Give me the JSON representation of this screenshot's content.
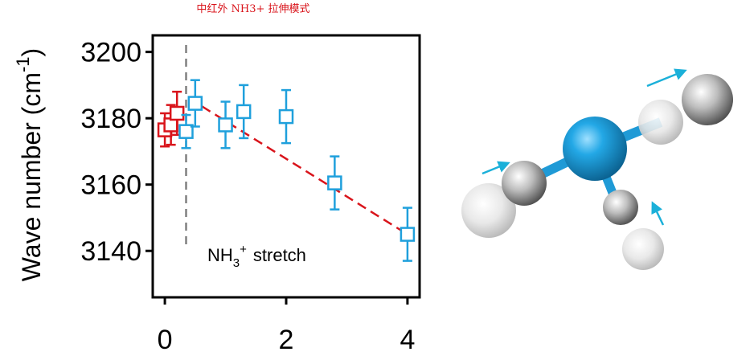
{
  "chart_data": {
    "type": "scatter",
    "title": "中红外 NH3+ 拉伸模式",
    "ylabel_main": "Wave number (cm",
    "ylabel_sup": "-1",
    "ylabel_close": ")",
    "xlabel": "",
    "xlim": [
      -0.2,
      4.2
    ],
    "ylim": [
      3126,
      3205
    ],
    "x_ticks": [
      0,
      2,
      4
    ],
    "y_ticks": [
      3140,
      3160,
      3180,
      3200
    ],
    "grid": false,
    "annotation": {
      "main": "NH",
      "sub": "3",
      "sup": "+",
      "rest": "stretch"
    },
    "vline_x": 0.35,
    "trend_line": {
      "x": [
        0.4,
        4.0
      ],
      "y": [
        3186,
        3145
      ],
      "color": "#d9141b"
    },
    "series": [
      {
        "color": "#d9141b",
        "points": [
          {
            "x": 0.0,
            "y": 3176.5,
            "err": 5
          },
          {
            "x": 0.1,
            "y": 3178,
            "err": 6
          },
          {
            "x": 0.2,
            "y": 3181.5,
            "err": 6.5
          }
        ]
      },
      {
        "color": "#1fa0dc",
        "points": [
          {
            "x": 0.35,
            "y": 3176,
            "err": 5
          },
          {
            "x": 0.5,
            "y": 3184.5,
            "err": 7
          },
          {
            "x": 1.0,
            "y": 3178,
            "err": 7
          },
          {
            "x": 1.3,
            "y": 3182,
            "err": 8
          },
          {
            "x": 2.0,
            "y": 3180.5,
            "err": 8
          },
          {
            "x": 2.8,
            "y": 3160.5,
            "err": 8
          },
          {
            "x": 4.0,
            "y": 3145,
            "err": 8
          }
        ]
      }
    ],
    "colors": {
      "axis": "#000000",
      "vline": "#808080"
    }
  }
}
